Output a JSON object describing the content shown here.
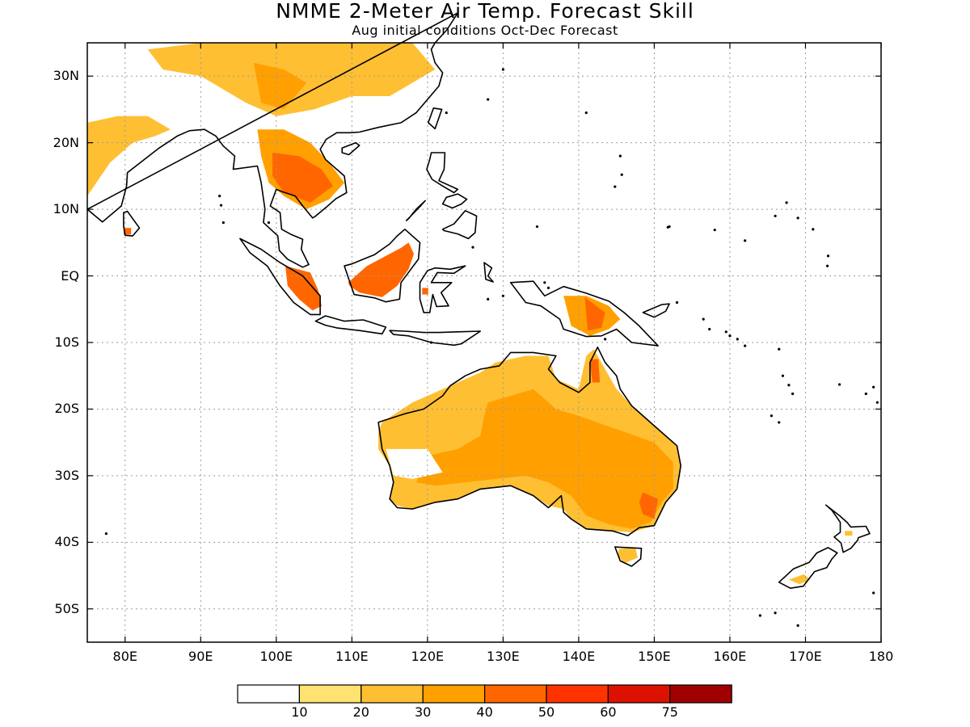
{
  "title": "NMME 2-Meter Air Temp. Forecast Skill",
  "subtitle": "Aug initial conditions  Oct-Dec Forecast",
  "colors": {
    "coast": "#000000",
    "grid": "#9a9a9a",
    "bins": [
      "#ffffff",
      "#ffe270",
      "#ffbf33",
      "#ffa000",
      "#ff6600",
      "#ff3300",
      "#dd1100",
      "#a00000"
    ]
  },
  "map": {
    "projection": "equirectangular",
    "lon_range": [
      75,
      180
    ],
    "lat_range": [
      -55,
      35
    ],
    "lat_ticks": [
      {
        "value": 30,
        "label": "30N"
      },
      {
        "value": 20,
        "label": "20N"
      },
      {
        "value": 10,
        "label": "10N"
      },
      {
        "value": 0,
        "label": "EQ"
      },
      {
        "value": -10,
        "label": "10S"
      },
      {
        "value": -20,
        "label": "20S"
      },
      {
        "value": -30,
        "label": "30S"
      },
      {
        "value": -40,
        "label": "40S"
      },
      {
        "value": -50,
        "label": "50S"
      }
    ],
    "lon_ticks": [
      {
        "value": 80,
        "label": "80E"
      },
      {
        "value": 90,
        "label": "90E"
      },
      {
        "value": 100,
        "label": "100E"
      },
      {
        "value": 110,
        "label": "110E"
      },
      {
        "value": 120,
        "label": "120E"
      },
      {
        "value": 130,
        "label": "130E"
      },
      {
        "value": 140,
        "label": "140E"
      },
      {
        "value": 150,
        "label": "150E"
      },
      {
        "value": 160,
        "label": "160E"
      },
      {
        "value": 170,
        "label": "170E"
      },
      {
        "value": 180,
        "label": "180"
      }
    ]
  },
  "colorbar": {
    "labels": [
      "10",
      "20",
      "30",
      "40",
      "50",
      "60",
      "75"
    ]
  }
}
